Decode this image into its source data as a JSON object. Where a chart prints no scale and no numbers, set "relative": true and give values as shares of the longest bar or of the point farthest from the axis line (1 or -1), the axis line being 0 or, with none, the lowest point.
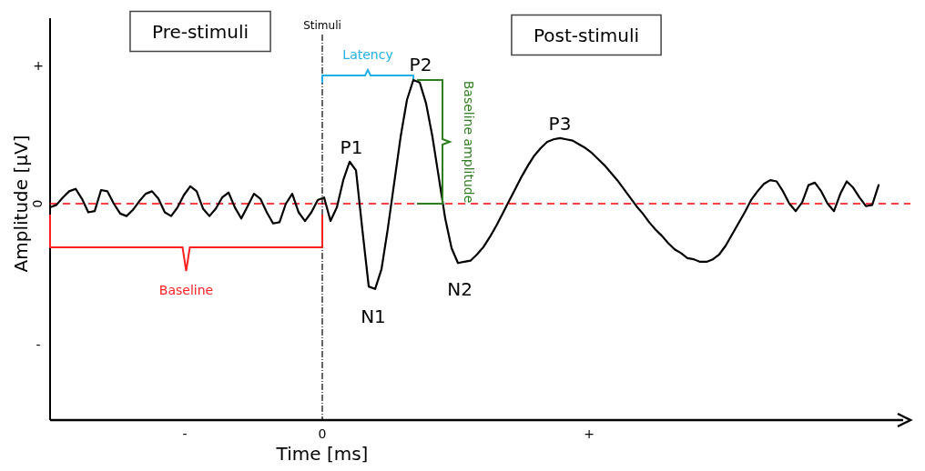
{
  "chart_data": {
    "type": "line",
    "ylabel": "Amplitude [μV]",
    "relative": true,
    "categories": [
      null,
      null,
      null,
      null,
      null,
      null,
      null,
      null,
      null,
      null,
      null,
      null,
      null,
      null,
      null,
      null,
      null,
      null,
      null,
      null,
      null,
      null,
      null,
      null,
      null,
      null,
      null,
      null,
      null,
      null,
      null,
      null,
      null,
      null,
      null,
      null,
      null,
      null,
      null,
      null,
      null,
      null,
      null,
      null,
      null,
      null,
      null,
      null,
      null,
      null,
      null,
      null,
      null,
      null,
      null,
      null,
      null,
      null,
      null,
      null,
      null,
      null,
      null,
      null,
      null,
      null,
      null,
      null,
      null,
      null,
      null,
      null,
      null,
      null,
      null,
      null,
      null,
      null,
      null,
      null,
      null,
      null,
      null,
      null,
      null,
      null,
      null,
      null,
      null,
      null,
      null,
      null,
      null,
      null,
      null,
      null,
      null,
      null,
      null,
      null,
      null,
      null,
      null,
      null,
      null,
      null,
      null,
      null,
      null,
      null,
      null,
      null,
      null,
      null,
      null,
      null,
      null,
      null,
      null,
      null,
      null,
      null,
      null,
      null,
      null,
      null,
      null,
      null,
      null,
      null,
      null
    ],
    "series": [
      {
        "color": "#000000",
        "values": [
          -0.03,
          -0.01,
          0.05,
          0.1,
          0.12,
          0.04,
          -0.07,
          -0.06,
          0.11,
          0.1,
          0,
          -0.08,
          -0.1,
          -0.05,
          0.02,
          0.08,
          0.1,
          0.04,
          -0.07,
          -0.1,
          -0.03,
          0.07,
          0.14,
          0.1,
          -0.04,
          -0.1,
          -0.04,
          0.05,
          0.09,
          -0.03,
          -0.12,
          -0.02,
          0.08,
          0.04,
          -0.07,
          -0.16,
          -0.15,
          0,
          0.08,
          -0.07,
          -0.14,
          -0.07,
          0.03,
          0.05,
          -0.14,
          -0.03,
          0.19,
          0.34,
          0.27,
          -0.21,
          -0.67,
          -0.69,
          -0.53,
          -0.2,
          0.17,
          0.54,
          0.84,
          1,
          0.98,
          0.81,
          0.54,
          0.21,
          -0.12,
          -0.36,
          -0.48,
          -0.47,
          -0.46,
          -0.41,
          -0.35,
          -0.27,
          -0.18,
          -0.08,
          0.02,
          0.12,
          0.22,
          0.31,
          0.39,
          0.45,
          0.5,
          0.52,
          0.53,
          0.52,
          0.51,
          0.48,
          0.45,
          0.41,
          0.36,
          0.31,
          0.25,
          0.19,
          0.12,
          0.05,
          -0.02,
          -0.08,
          -0.15,
          -0.21,
          -0.26,
          -0.32,
          -0.37,
          -0.4,
          -0.44,
          -0.45,
          -0.47,
          -0.47,
          -0.45,
          -0.41,
          -0.34,
          -0.25,
          -0.16,
          -0.07,
          0.03,
          0.1,
          0.16,
          0.19,
          0.18,
          0.1,
          0,
          -0.06,
          0.01,
          0.15,
          0.17,
          0.1,
          0,
          -0.06,
          0.08,
          0.18,
          0.13,
          0.05,
          -0.02,
          -0.01,
          0.15
        ]
      }
    ],
    "ref_lines": [
      {
        "axis": "y",
        "value": 0,
        "color": "#ff0000",
        "line_style": "dashed"
      }
    ],
    "annotations": [
      "Pre-stimuli",
      "Post-stimuli",
      {
        "text": "P1",
        "y": 0.34
      },
      {
        "text": "N1",
        "y": -0.69
      },
      {
        "text": "P2",
        "y": 1
      },
      {
        "text": "N2",
        "y": -0.48
      },
      {
        "text": "P3",
        "y": 0.53
      },
      "Latency",
      "Baseline amplitude",
      "Baseline",
      "+",
      "0",
      "-",
      "-",
      "0",
      "+",
      "Stimuli",
      "Time [ms]"
    ],
    "marker": "none",
    "line_style": "solid"
  }
}
